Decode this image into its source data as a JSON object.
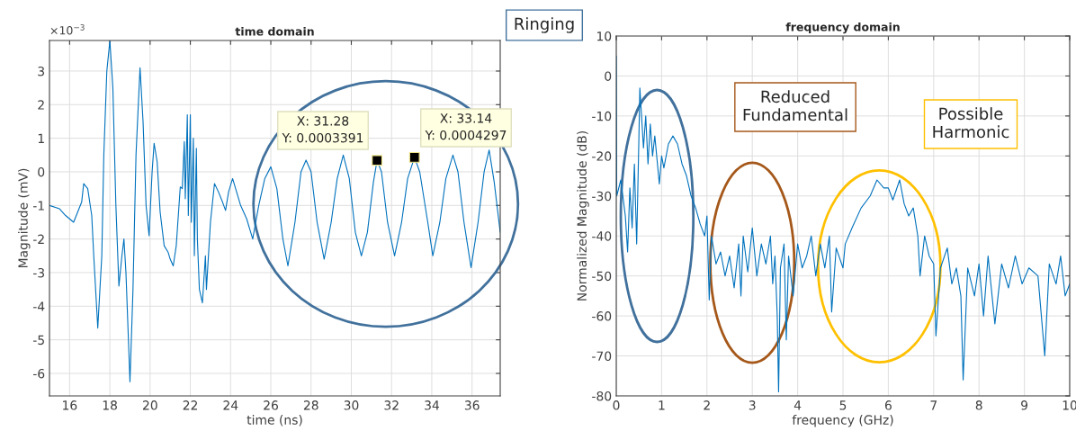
{
  "chart_data": [
    {
      "type": "line",
      "title": "time domain",
      "xlabel": "time (ns)",
      "ylabel": "Magnitude (mV)",
      "xlim": [
        15,
        37.4
      ],
      "xticks": [
        16,
        18,
        20,
        22,
        24,
        26,
        28,
        30,
        32,
        34,
        36
      ],
      "ylim": [
        -6.67,
        3.91
      ],
      "yticks": [
        -6,
        -5,
        -4,
        -3,
        -2,
        -1,
        0,
        1,
        2,
        3
      ],
      "grid": true,
      "annotations": [
        "×10$^{−3}$",
        "X: 31.28\nY: 0.0003391",
        "X: 33.14\nY: 0.0004297"
      ],
      "series": [
        {
          "color": "#0072bd",
          "x": [
            15,
            15.5,
            15.8,
            16.2,
            16.4,
            16.6,
            16.7,
            16.9,
            17.1,
            17.2,
            17.4,
            17.6,
            17.7,
            17.85,
            18.0,
            18.15,
            18.3,
            18.45,
            18.6,
            18.7,
            18.8,
            19.0,
            19.15,
            19.3,
            19.5,
            19.65,
            19.8,
            19.95,
            20.1,
            20.2,
            20.35,
            20.5,
            20.7,
            20.9,
            21.0,
            21.15,
            21.3,
            21.5,
            21.6,
            21.7,
            21.75,
            21.85,
            21.9,
            22.0,
            22.05,
            22.15,
            22.2,
            22.3,
            22.35,
            22.45,
            22.6,
            22.75,
            22.8,
            23.0,
            23.2,
            23.4,
            23.6,
            23.75,
            23.9,
            24.1,
            24.3,
            24.5,
            24.8,
            25.1,
            25.4,
            25.7,
            26.0,
            26.3,
            26.6,
            26.85,
            27.2,
            27.5,
            27.75,
            28.0,
            28.3,
            28.65,
            29.0,
            29.3,
            29.6,
            29.9,
            30.2,
            30.5,
            30.8,
            31.1,
            31.28,
            31.5,
            31.8,
            32.15,
            32.5,
            32.8,
            33.14,
            33.4,
            33.8,
            34.05,
            34.4,
            34.7,
            35.05,
            35.3,
            35.6,
            35.95,
            36.3,
            36.6,
            36.85,
            37.1,
            37.4
          ],
          "values": [
            -1.0,
            -1.1,
            -1.3,
            -1.5,
            -1.2,
            -0.9,
            -0.35,
            -0.5,
            -1.3,
            -2.5,
            -4.65,
            -2.5,
            0.5,
            3.0,
            3.9,
            2.5,
            -1.0,
            -3.4,
            -2.5,
            -2.0,
            -3.0,
            -6.25,
            -3.5,
            0.5,
            3.1,
            1.5,
            -1.0,
            -1.9,
            0.0,
            0.85,
            0.3,
            -1.2,
            -2.2,
            -2.4,
            -2.6,
            -2.8,
            -2.2,
            -0.45,
            -0.5,
            0.9,
            -0.8,
            1.7,
            -1.3,
            1.7,
            -1.5,
            1.0,
            -2.5,
            0.7,
            -2.0,
            -3.5,
            -3.9,
            -2.5,
            -3.5,
            -1.5,
            -0.35,
            -0.6,
            -0.9,
            -1.15,
            -0.6,
            -0.2,
            -0.6,
            -1.0,
            -1.4,
            -2.0,
            -1.0,
            -0.2,
            0.15,
            -0.5,
            -2.0,
            -2.8,
            -1.5,
            0.0,
            0.35,
            0.0,
            -1.5,
            -2.6,
            -1.5,
            -0.2,
            0.5,
            -0.2,
            -1.8,
            -2.5,
            -1.8,
            -0.3,
            0.34,
            0.0,
            -1.5,
            -2.5,
            -1.5,
            -0.2,
            0.43,
            0.0,
            -1.5,
            -2.5,
            -1.5,
            -0.2,
            0.5,
            0.0,
            -1.5,
            -2.85,
            -1.5,
            0.0,
            0.65,
            -0.3,
            -1.8
          ]
        },
        {
          "type": "scatter",
          "color": "#000000",
          "marker": "square",
          "x": [
            31.28,
            33.14
          ],
          "values": [
            0.34,
            0.43
          ]
        }
      ]
    },
    {
      "type": "line",
      "title": "frequency domain",
      "xlabel": "frequency (GHz)",
      "ylabel": "Normalized Magnitude (dB)",
      "xlim": [
        0,
        10
      ],
      "xticks": [
        0,
        1,
        2,
        3,
        4,
        5,
        6,
        7,
        8,
        9,
        10
      ],
      "ylim": [
        -80,
        10
      ],
      "yticks": [
        -80,
        -70,
        -60,
        -50,
        -40,
        -30,
        -20,
        -10,
        0,
        10
      ],
      "grid": true,
      "annotations": [
        "Ringing",
        "Reduced\nFundamental",
        "Possible\nHarmonic"
      ],
      "series": [
        {
          "color": "#0072bd",
          "x": [
            0,
            0.01,
            0.1,
            0.2,
            0.25,
            0.3,
            0.35,
            0.4,
            0.45,
            0.5,
            0.52,
            0.6,
            0.65,
            0.7,
            0.75,
            0.8,
            0.85,
            0.95,
            1.0,
            1.05,
            1.15,
            1.25,
            1.35,
            1.45,
            1.55,
            1.65,
            1.75,
            1.85,
            1.95,
            2.0,
            2.05,
            2.1,
            2.2,
            2.3,
            2.4,
            2.5,
            2.6,
            2.7,
            2.75,
            2.8,
            2.9,
            3.0,
            3.1,
            3.2,
            3.3,
            3.4,
            3.45,
            3.5,
            3.55,
            3.58,
            3.62,
            3.7,
            3.75,
            3.8,
            3.9,
            4.0,
            4.1,
            4.2,
            4.3,
            4.4,
            4.5,
            4.6,
            4.7,
            4.75,
            4.85,
            5.0,
            5.05,
            5.2,
            5.4,
            5.6,
            5.75,
            5.9,
            6.0,
            6.1,
            6.25,
            6.35,
            6.45,
            6.55,
            6.65,
            6.7,
            6.8,
            6.9,
            7.0,
            7.05,
            7.15,
            7.3,
            7.4,
            7.5,
            7.6,
            7.65,
            7.75,
            7.9,
            8.0,
            8.1,
            8.2,
            8.35,
            8.5,
            8.65,
            8.8,
            8.95,
            9.1,
            9.3,
            9.45,
            9.55,
            9.7,
            9.8,
            9.9,
            10
          ],
          "values": [
            5,
            -30,
            -26,
            -35,
            -44,
            -28,
            -38,
            -22,
            -42,
            -15,
            -3,
            -18,
            -10,
            -22,
            -12,
            -20,
            -15,
            -27,
            -20,
            -23,
            -17,
            -15,
            -17,
            -22,
            -25,
            -30,
            -33,
            -37,
            -40,
            -35,
            -56,
            -40,
            -47,
            -44,
            -50,
            -45,
            -53,
            -42,
            -55,
            -40,
            -49,
            -38,
            -50,
            -42,
            -47,
            -40,
            -52,
            -45,
            -60,
            -79,
            -48,
            -42,
            -66,
            -45,
            -55,
            -42,
            -48,
            -45,
            -40,
            -50,
            -42,
            -48,
            -40,
            -59,
            -43,
            -48,
            -42,
            -38,
            -33,
            -30,
            -26,
            -28,
            -28,
            -31,
            -26,
            -32,
            -35,
            -33,
            -40,
            -50,
            -40,
            -45,
            -47,
            -65,
            -48,
            -43,
            -52,
            -48,
            -55,
            -76,
            -48,
            -55,
            -47,
            -60,
            -45,
            -62,
            -47,
            -53,
            -45,
            -52,
            -48,
            -50,
            -70,
            -47,
            -52,
            -45,
            -55,
            -52
          ]
        }
      ]
    }
  ]
}
